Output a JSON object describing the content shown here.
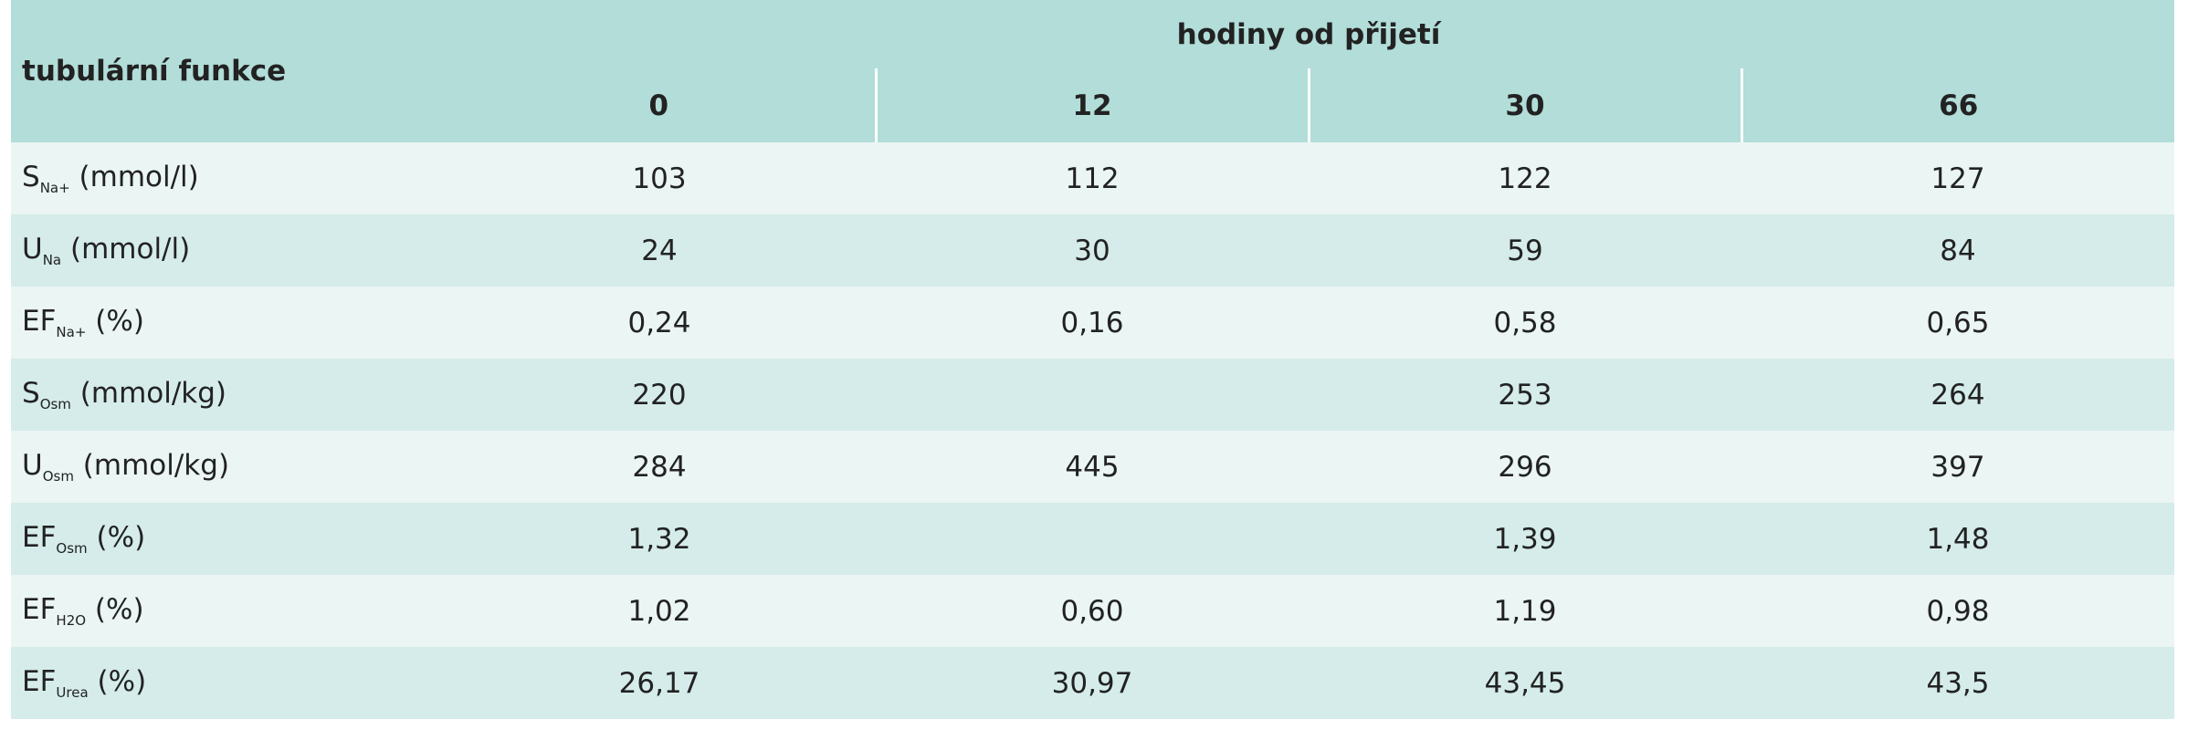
{
  "table": {
    "corner": "tubulární funkce",
    "group_header": "hodiny od přijetí",
    "columns": [
      "0",
      "12",
      "30",
      "66"
    ],
    "rows": [
      {
        "label": "S",
        "sub": "Na+",
        "unit": "(mmol/l)",
        "values": [
          "103",
          "112",
          "122",
          "127"
        ]
      },
      {
        "label": "U",
        "sub": "Na",
        "unit": "(mmol/l)",
        "values": [
          "24",
          "30",
          "59",
          "84"
        ]
      },
      {
        "label": "EF",
        "sub": "Na+",
        "unit": "(%)",
        "values": [
          "0,24",
          "0,16",
          "0,58",
          "0,65"
        ]
      },
      {
        "label": "S",
        "sub": "Osm",
        "unit": "(mmol/kg)",
        "values": [
          "220",
          null,
          "253",
          "264"
        ]
      },
      {
        "label": "U",
        "sub": "Osm",
        "unit": "(mmol/kg)",
        "values": [
          "284",
          "445",
          "296",
          "397"
        ]
      },
      {
        "label": "EF",
        "sub": "Osm",
        "unit": "(%)",
        "values": [
          "1,32",
          null,
          "1,39",
          "1,48"
        ]
      },
      {
        "label": "EF",
        "sub": "H2O",
        "unit": "(%)",
        "values": [
          "1,02",
          "0,60",
          "1,19",
          "0,98"
        ]
      },
      {
        "label": "EF",
        "sub": "Urea",
        "unit": "(%)",
        "values": [
          "26,17",
          "30,97",
          "43,45",
          "43,5"
        ]
      }
    ]
  }
}
